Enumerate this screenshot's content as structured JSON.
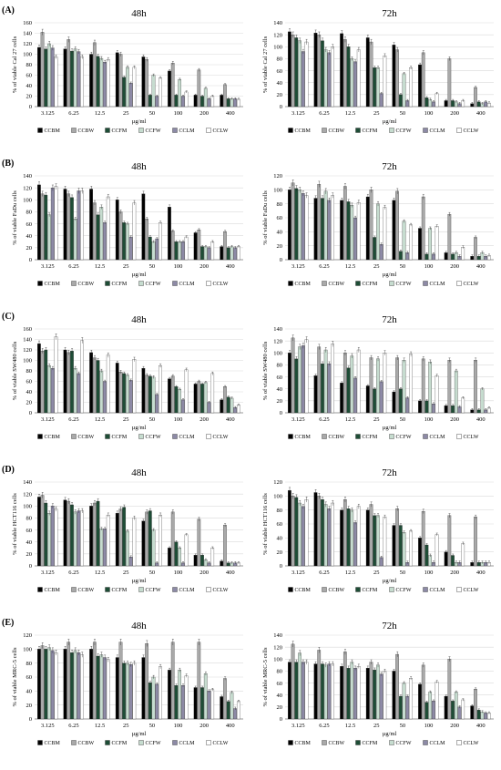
{
  "figure": {
    "legend": [
      {
        "name": "CCBM",
        "color": "#000000"
      },
      {
        "name": "CCBW",
        "color": "#a9a9a9"
      },
      {
        "name": "CCFM",
        "color": "#1e4d36"
      },
      {
        "name": "CCFW",
        "color": "#c6dccf"
      },
      {
        "name": "CCLM",
        "color": "#8d8aa6"
      },
      {
        "name": "CCLW",
        "color": "#ffffff"
      }
    ]
  },
  "chart_data": [
    {
      "type": "bar",
      "panel": "(A)",
      "title": "48h",
      "ylabel": "% of viable Cal 27 cells",
      "xlabel": "µg/ml",
      "ylim": [
        0,
        160
      ],
      "yticks": [
        0,
        20,
        40,
        60,
        80,
        100,
        120,
        140,
        160
      ],
      "categories": [
        "3.125",
        "6.25",
        "12.5",
        "25",
        "50",
        "100",
        "200",
        "400"
      ],
      "series": [
        {
          "name": "CCBM",
          "values": [
            113,
            110,
            100,
            103,
            95,
            68,
            22,
            22
          ]
        },
        {
          "name": "CCBW",
          "values": [
            142,
            128,
            122,
            100,
            90,
            83,
            70,
            42
          ]
        },
        {
          "name": "CCFM",
          "values": [
            110,
            106,
            96,
            56,
            22,
            22,
            20,
            15
          ]
        },
        {
          "name": "CCFW",
          "values": [
            120,
            110,
            92,
            75,
            60,
            52,
            35,
            15
          ]
        },
        {
          "name": "CCLM",
          "values": [
            112,
            105,
            85,
            45,
            20,
            20,
            15,
            15
          ]
        },
        {
          "name": "CCLW",
          "values": [
            95,
            95,
            90,
            75,
            55,
            28,
            20,
            14
          ]
        }
      ]
    },
    {
      "type": "bar",
      "panel": "",
      "title": "72h",
      "ylabel": "% of viable Cal 27 cells",
      "xlabel": "µg/ml",
      "ylim": [
        0,
        140
      ],
      "yticks": [
        0,
        20,
        40,
        60,
        80,
        100,
        120,
        140
      ],
      "categories": [
        "3.125",
        "6.25",
        "12.5",
        "25",
        "50",
        "100",
        "200",
        "400"
      ],
      "series": [
        {
          "name": "CCBM",
          "values": [
            125,
            123,
            122,
            115,
            103,
            70,
            10,
            5
          ]
        },
        {
          "name": "CCBW",
          "values": [
            120,
            120,
            112,
            108,
            95,
            90,
            80,
            32
          ]
        },
        {
          "name": "CCFM",
          "values": [
            115,
            110,
            100,
            65,
            20,
            15,
            10,
            8
          ]
        },
        {
          "name": "CCFW",
          "values": [
            110,
            95,
            80,
            65,
            55,
            12,
            8,
            5
          ]
        },
        {
          "name": "CCLM",
          "values": [
            92,
            90,
            75,
            22,
            10,
            8,
            5,
            8
          ]
        },
        {
          "name": "CCLW",
          "values": [
            108,
            100,
            95,
            85,
            65,
            22,
            10,
            6
          ]
        }
      ]
    },
    {
      "type": "bar",
      "panel": "(B)",
      "title": "48h",
      "ylabel": "% of viable FaDu cells",
      "xlabel": "µg/ml",
      "ylim": [
        0,
        140
      ],
      "yticks": [
        0,
        20,
        40,
        60,
        80,
        100,
        120,
        140
      ],
      "categories": [
        "3.125",
        "6.25",
        "12.5",
        "25",
        "50",
        "100",
        "200",
        "400"
      ],
      "series": [
        {
          "name": "CCBM",
          "values": [
            125,
            118,
            118,
            100,
            110,
            88,
            45,
            22
          ]
        },
        {
          "name": "CCBW",
          "values": [
            110,
            110,
            95,
            80,
            68,
            48,
            50,
            47
          ]
        },
        {
          "name": "CCFM",
          "values": [
            108,
            104,
            75,
            62,
            38,
            30,
            22,
            20
          ]
        },
        {
          "name": "CCFW",
          "values": [
            75,
            68,
            88,
            60,
            30,
            30,
            22,
            22
          ]
        },
        {
          "name": "CCLM",
          "values": [
            120,
            115,
            62,
            38,
            35,
            30,
            20,
            20
          ]
        },
        {
          "name": "CCLW",
          "values": [
            122,
            115,
            105,
            95,
            62,
            38,
            30,
            22
          ]
        }
      ]
    },
    {
      "type": "bar",
      "panel": "",
      "title": "72h",
      "ylabel": "% of viable FaDu cells",
      "xlabel": "µg/ml",
      "ylim": [
        0,
        120
      ],
      "yticks": [
        0,
        20,
        40,
        60,
        80,
        100,
        120
      ],
      "categories": [
        "3.125",
        "6.25",
        "12.5",
        "25",
        "50",
        "100",
        "200",
        "400"
      ],
      "series": [
        {
          "name": "CCBM",
          "values": [
            100,
            88,
            85,
            90,
            85,
            45,
            10,
            5
          ]
        },
        {
          "name": "CCBW",
          "values": [
            110,
            108,
            105,
            100,
            98,
            90,
            65,
            32
          ]
        },
        {
          "name": "CCFM",
          "values": [
            102,
            88,
            83,
            32,
            12,
            8,
            8,
            5
          ]
        },
        {
          "name": "CCFW",
          "values": [
            100,
            98,
            78,
            80,
            55,
            45,
            10,
            10
          ]
        },
        {
          "name": "CCLM",
          "values": [
            95,
            85,
            60,
            22,
            10,
            8,
            5,
            5
          ]
        },
        {
          "name": "CCLW",
          "values": [
            92,
            92,
            82,
            75,
            50,
            48,
            18,
            6
          ]
        }
      ]
    },
    {
      "type": "bar",
      "panel": "(C)",
      "title": "48h",
      "ylabel": "% of viable SW480 cells",
      "xlabel": "µg/ml",
      "ylim": [
        0,
        160
      ],
      "yticks": [
        0,
        20,
        40,
        60,
        80,
        100,
        120,
        140,
        160
      ],
      "categories": [
        "3.125",
        "6.25",
        "12.5",
        "25",
        "50",
        "100",
        "200",
        "400"
      ],
      "series": [
        {
          "name": "CCBM",
          "values": [
            132,
            120,
            115,
            95,
            85,
            65,
            55,
            25
          ]
        },
        {
          "name": "CCBW",
          "values": [
            118,
            115,
            105,
            78,
            72,
            70,
            60,
            50
          ]
        },
        {
          "name": "CCFM",
          "values": [
            120,
            118,
            100,
            75,
            70,
            50,
            55,
            30
          ]
        },
        {
          "name": "CCFW",
          "values": [
            90,
            85,
            80,
            72,
            68,
            45,
            58,
            28
          ]
        },
        {
          "name": "CCLM",
          "values": [
            85,
            75,
            60,
            62,
            35,
            25,
            20,
            10
          ]
        },
        {
          "name": "CCLW",
          "values": [
            145,
            138,
            110,
            102,
            90,
            82,
            75,
            15
          ]
        }
      ]
    },
    {
      "type": "bar",
      "panel": "",
      "title": "72h",
      "ylabel": "% of viable SW480 cells",
      "xlabel": "µg/ml",
      "ylim": [
        0,
        140
      ],
      "yticks": [
        0,
        20,
        40,
        60,
        80,
        100,
        120,
        140
      ],
      "categories": [
        "3.125",
        "6.25",
        "12.5",
        "25",
        "50",
        "100",
        "200",
        "400"
      ],
      "series": [
        {
          "name": "CCBM",
          "values": [
            100,
            62,
            50,
            45,
            35,
            20,
            12,
            5
          ]
        },
        {
          "name": "CCBW",
          "values": [
            125,
            110,
            100,
            92,
            92,
            90,
            88,
            88
          ]
        },
        {
          "name": "CCFM",
          "values": [
            90,
            82,
            75,
            40,
            40,
            20,
            12,
            5
          ]
        },
        {
          "name": "CCFW",
          "values": [
            110,
            105,
            95,
            90,
            88,
            85,
            70,
            40
          ]
        },
        {
          "name": "CCLM",
          "values": [
            112,
            82,
            58,
            52,
            25,
            15,
            10,
            5
          ]
        },
        {
          "name": "CCLW",
          "values": [
            122,
            115,
            105,
            100,
            98,
            62,
            25,
            8
          ]
        }
      ]
    },
    {
      "type": "bar",
      "panel": "(D)",
      "title": "48h",
      "ylabel": "% of viable HCT116 cells",
      "xlabel": "µg/ml",
      "ylim": [
        0,
        140
      ],
      "yticks": [
        0,
        20,
        40,
        60,
        80,
        100,
        120,
        140
      ],
      "categories": [
        "3.125",
        "6.25",
        "12.5",
        "25",
        "50",
        "100",
        "200",
        "400"
      ],
      "series": [
        {
          "name": "CCBM",
          "values": [
            115,
            110,
            100,
            88,
            75,
            30,
            18,
            8
          ]
        },
        {
          "name": "CCBW",
          "values": [
            118,
            108,
            105,
            95,
            90,
            90,
            78,
            68
          ]
        },
        {
          "name": "CCFM",
          "values": [
            105,
            102,
            108,
            98,
            92,
            40,
            18,
            5
          ]
        },
        {
          "name": "CCFW",
          "values": [
            88,
            90,
            62,
            58,
            60,
            30,
            10,
            5
          ]
        },
        {
          "name": "CCLM",
          "values": [
            100,
            92,
            62,
            15,
            5,
            5,
            5,
            5
          ]
        },
        {
          "name": "CCLW",
          "values": [
            95,
            92,
            85,
            80,
            85,
            52,
            30,
            5
          ]
        }
      ]
    },
    {
      "type": "bar",
      "panel": "",
      "title": "72h",
      "ylabel": "% of viable HCT116 cells",
      "xlabel": "µg/ml",
      "ylim": [
        0,
        120
      ],
      "yticks": [
        0,
        20,
        40,
        60,
        80,
        100,
        120
      ],
      "categories": [
        "3.125",
        "6.25",
        "12.5",
        "25",
        "50",
        "100",
        "200",
        "400"
      ],
      "series": [
        {
          "name": "CCBM",
          "values": [
            108,
            105,
            80,
            80,
            58,
            40,
            20,
            5
          ]
        },
        {
          "name": "CCBW",
          "values": [
            100,
            100,
            95,
            88,
            82,
            78,
            72,
            70
          ]
        },
        {
          "name": "CCFM",
          "values": [
            98,
            95,
            82,
            72,
            58,
            30,
            15,
            5
          ]
        },
        {
          "name": "CCFW",
          "values": [
            90,
            88,
            80,
            72,
            48,
            15,
            5,
            5
          ]
        },
        {
          "name": "CCLM",
          "values": [
            85,
            82,
            62,
            12,
            5,
            5,
            5,
            5
          ]
        },
        {
          "name": "CCLW",
          "values": [
            95,
            90,
            85,
            70,
            50,
            45,
            32,
            5
          ]
        }
      ]
    },
    {
      "type": "bar",
      "panel": "(E)",
      "title": "48h",
      "ylabel": "% of viable MRC-5 cells",
      "xlabel": "µg/ml",
      "ylim": [
        0,
        120
      ],
      "yticks": [
        0,
        20,
        40,
        60,
        80,
        100,
        120
      ],
      "categories": [
        "3.125",
        "6.25",
        "12.5",
        "25",
        "50",
        "100",
        "200",
        "400"
      ],
      "series": [
        {
          "name": "CCBM",
          "values": [
            100,
            100,
            100,
            88,
            88,
            70,
            45,
            32
          ]
        },
        {
          "name": "CCBW",
          "values": [
            105,
            110,
            110,
            110,
            108,
            110,
            110,
            58
          ]
        },
        {
          "name": "CCFM",
          "values": [
            100,
            95,
            90,
            80,
            52,
            48,
            45,
            25
          ]
        },
        {
          "name": "CCFW",
          "values": [
            102,
            98,
            92,
            80,
            60,
            70,
            65,
            38
          ]
        },
        {
          "name": "CCLM",
          "values": [
            98,
            95,
            88,
            78,
            50,
            48,
            40,
            15
          ]
        },
        {
          "name": "CCLW",
          "values": [
            95,
            92,
            85,
            80,
            75,
            62,
            42,
            25
          ]
        }
      ]
    },
    {
      "type": "bar",
      "panel": "",
      "title": "72h",
      "ylabel": "% of viable MRC-5 cells",
      "xlabel": "µg/ml",
      "ylim": [
        0,
        140
      ],
      "yticks": [
        0,
        20,
        40,
        60,
        80,
        100,
        120,
        140
      ],
      "categories": [
        "3.125",
        "6.25",
        "12.5",
        "25",
        "50",
        "100",
        "200",
        "400"
      ],
      "series": [
        {
          "name": "CCBM",
          "values": [
            95,
            92,
            88,
            85,
            80,
            58,
            38,
            22
          ]
        },
        {
          "name": "CCBW",
          "values": [
            125,
            115,
            112,
            95,
            108,
            90,
            100,
            50
          ]
        },
        {
          "name": "CCFM",
          "values": [
            95,
            92,
            85,
            82,
            38,
            28,
            30,
            15
          ]
        },
        {
          "name": "CCFW",
          "values": [
            110,
            90,
            95,
            90,
            60,
            45,
            45,
            12
          ]
        },
        {
          "name": "CCLM",
          "values": [
            95,
            92,
            85,
            75,
            38,
            30,
            20,
            10
          ]
        },
        {
          "name": "CCLW",
          "values": [
            95,
            92,
            88,
            80,
            68,
            62,
            32,
            10
          ]
        }
      ]
    }
  ]
}
